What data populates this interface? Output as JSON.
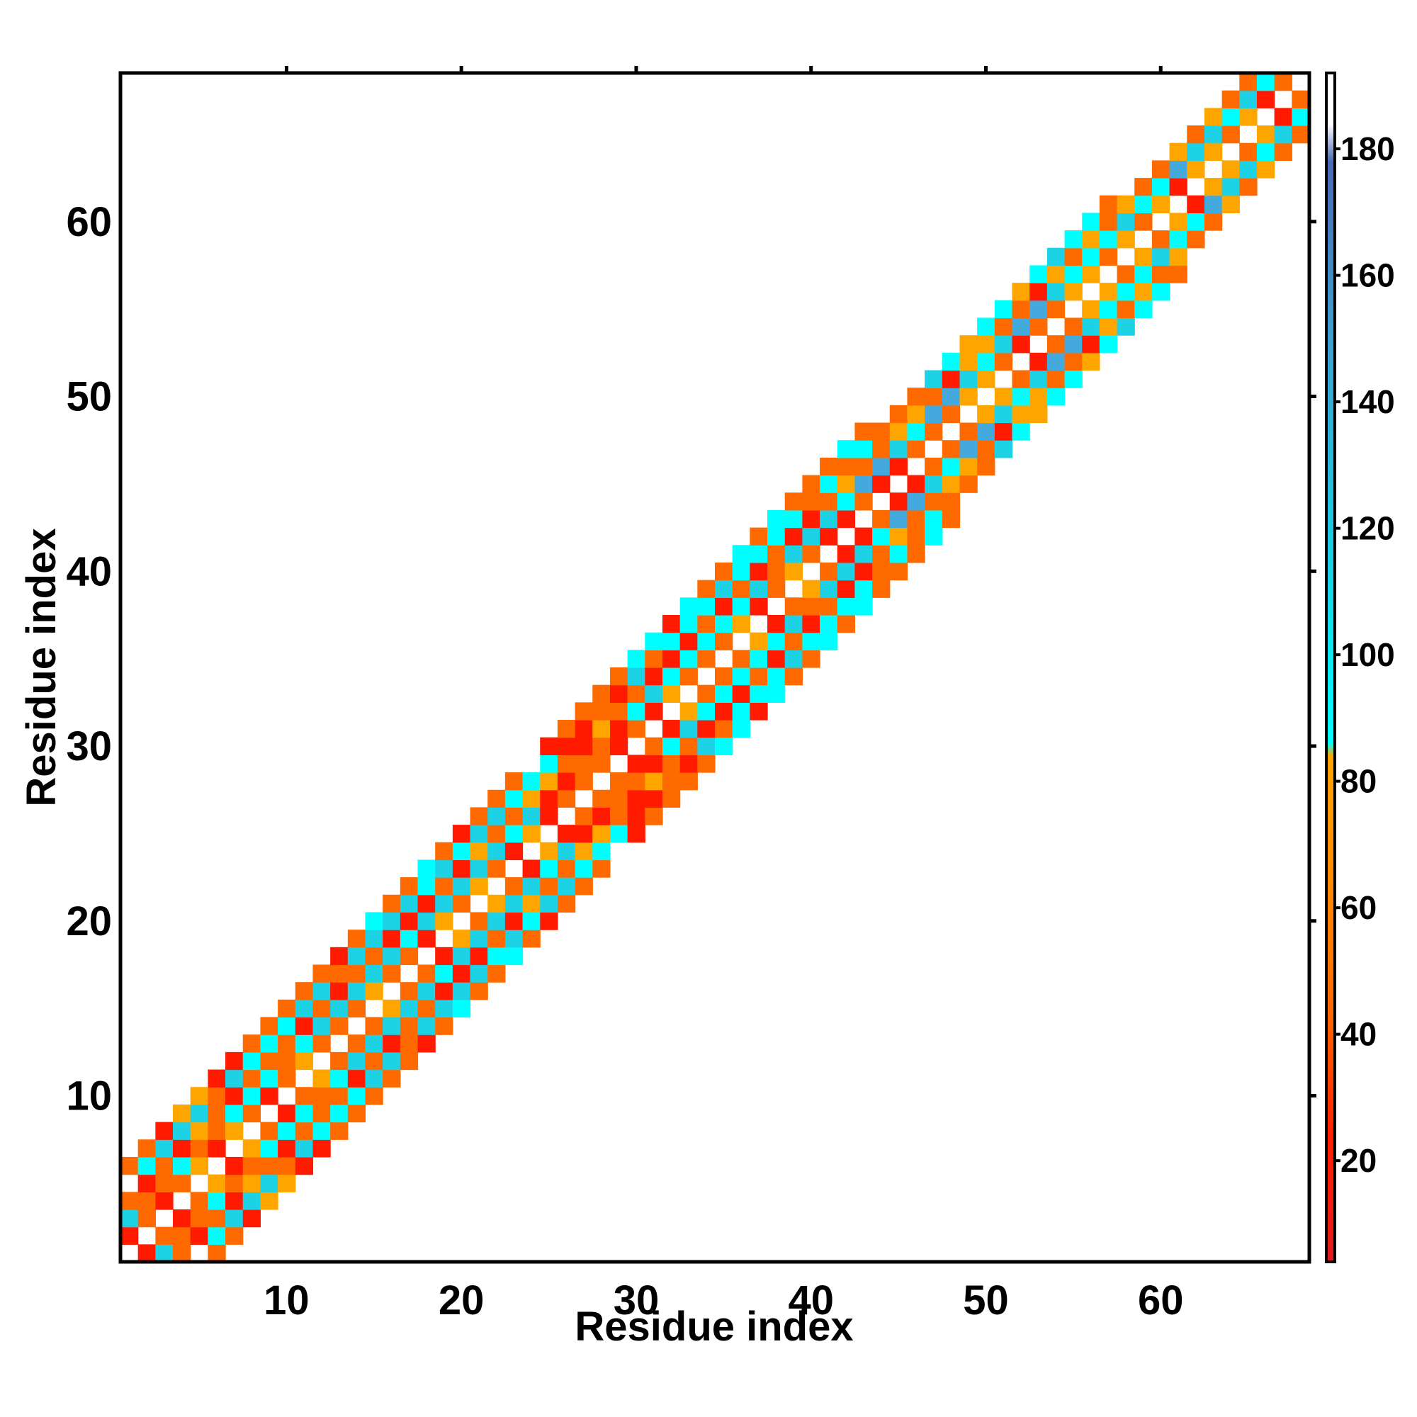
{
  "chart_data": {
    "type": "heatmap",
    "title": "",
    "xlabel": "Residue index",
    "ylabel": "Residue index",
    "xlim": [
      0.5,
      68.5
    ],
    "ylim": [
      0.5,
      68.5
    ],
    "x_ticks": [
      10,
      20,
      30,
      40,
      50,
      60
    ],
    "y_ticks": [
      10,
      20,
      30,
      40,
      50,
      60
    ],
    "grid": false,
    "colorbar": {
      "range": [
        4,
        192
      ],
      "ticks": [
        20,
        40,
        60,
        80,
        100,
        120,
        140,
        160,
        180
      ],
      "placement": "right",
      "stops": [
        {
          "value": 4,
          "color": "#e31a1c"
        },
        {
          "value": 24,
          "color": "#ff2000"
        },
        {
          "value": 44,
          "color": "#ff6a00"
        },
        {
          "value": 66,
          "color": "#ff8c00"
        },
        {
          "value": 84,
          "color": "#ffa500"
        },
        {
          "value": 86,
          "color": "#00ffff"
        },
        {
          "value": 120,
          "color": "#1ec8e0"
        },
        {
          "value": 150,
          "color": "#3da0d0"
        },
        {
          "value": 178,
          "color": "#4a6ab5"
        },
        {
          "value": 184,
          "color": "#ffffff"
        },
        {
          "value": 192,
          "color": "#ffffff"
        }
      ]
    },
    "colors": {
      "red": "#ff1a00",
      "orange": "#ff6a00",
      "amber": "#ffa500",
      "cyan": "#00ffff",
      "teal": "#1ed2e6",
      "steelblue": "#44aadd"
    },
    "cells_note": "Symmetric residue-pair map along the diagonal; value shown by color only",
    "pattern": "(i + j) mod 2 alternation within band |i-j| between 1 and 5"
  }
}
